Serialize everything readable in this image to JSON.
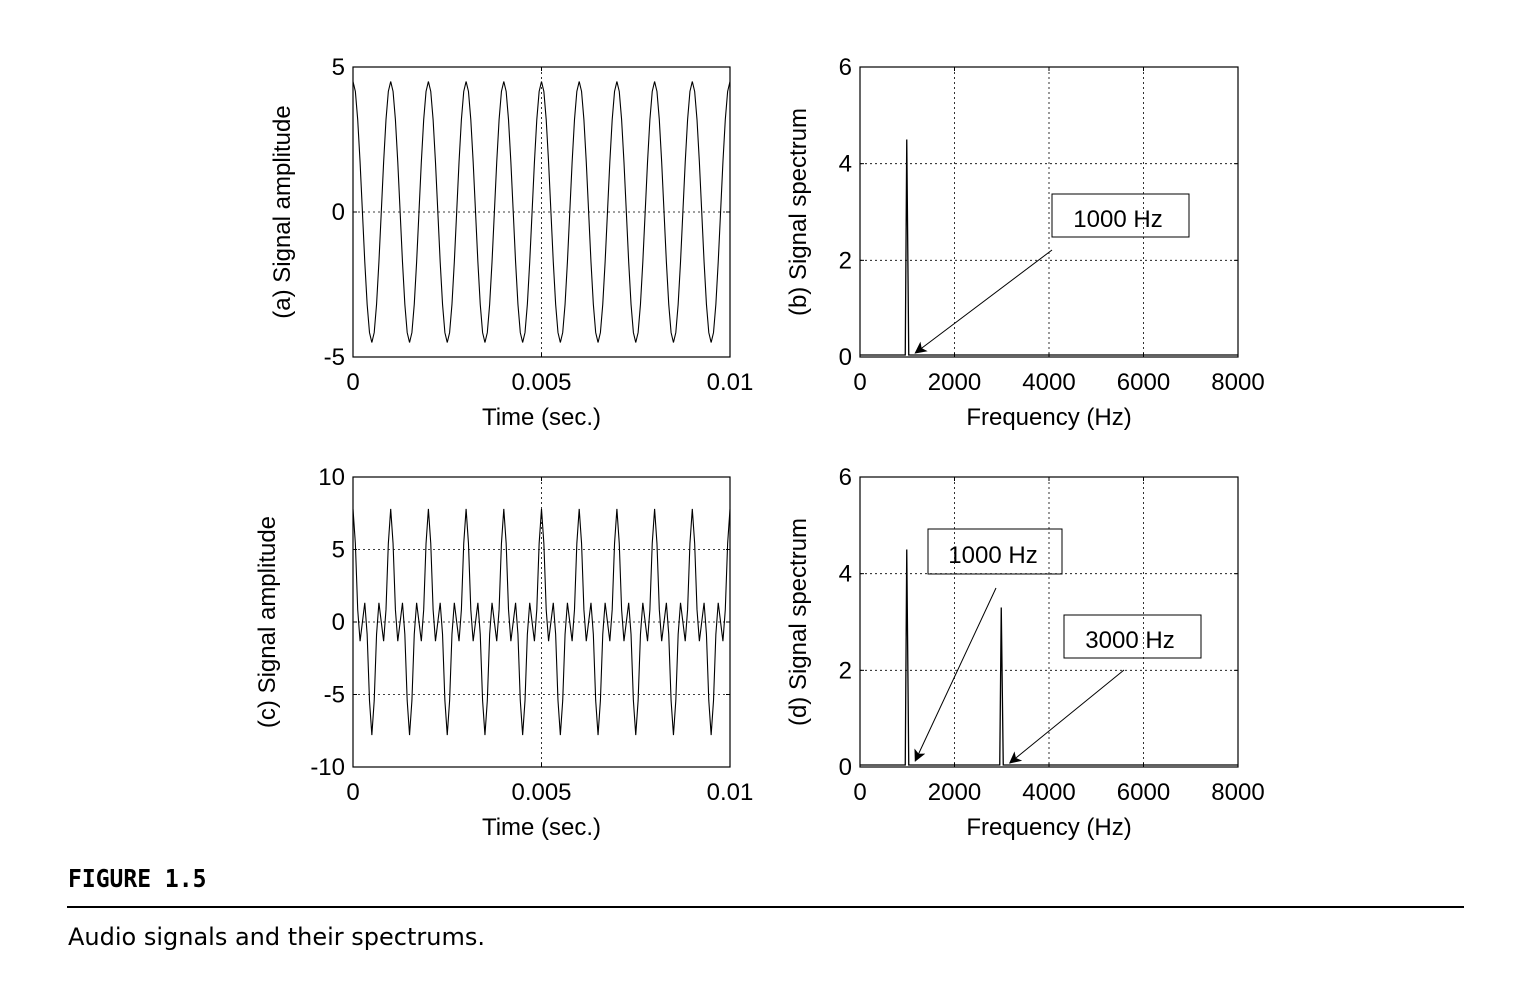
{
  "figure": {
    "label": "FIGURE 1.5",
    "caption": "Audio signals and their spectrums."
  },
  "chart_data": [
    {
      "id": "a",
      "type": "line",
      "xlabel": "Time (sec.)",
      "ylabel": "(a) Signal amplitude",
      "xlim": [
        0,
        0.01
      ],
      "ylim": [
        -5,
        5
      ],
      "xticks": [
        0,
        0.005,
        0.01
      ],
      "xtick_labels": [
        "0",
        "0.005",
        "0.01"
      ],
      "yticks": [
        -5,
        0,
        5
      ],
      "ytick_labels": [
        "-5",
        "0",
        "5"
      ],
      "grid": true,
      "signal": {
        "components": [
          {
            "amplitude": 4.5,
            "frequency_hz": 1000
          }
        ],
        "sample_rate_hz": 8000
      },
      "annotations": []
    },
    {
      "id": "b",
      "type": "line",
      "xlabel": "Frequency (Hz)",
      "ylabel": "(b) Signal spectrum",
      "xlim": [
        0,
        8000
      ],
      "ylim": [
        0,
        6
      ],
      "xticks": [
        0,
        2000,
        4000,
        6000,
        8000
      ],
      "xtick_labels": [
        "0",
        "2000",
        "4000",
        "6000",
        "8000"
      ],
      "yticks": [
        0,
        2,
        4,
        6
      ],
      "ytick_labels": [
        "0",
        "2",
        "4",
        "6"
      ],
      "grid": true,
      "peaks": [
        {
          "x": 1000,
          "y": 4.5
        }
      ],
      "annotations": [
        {
          "text": "1000 Hz",
          "target_x": 1000
        }
      ]
    },
    {
      "id": "c",
      "type": "line",
      "xlabel": "Time (sec.)",
      "ylabel": "(c) Signal amplitude",
      "xlim": [
        0,
        0.01
      ],
      "ylim": [
        -10,
        10
      ],
      "xticks": [
        0,
        0.005,
        0.01
      ],
      "xtick_labels": [
        "0",
        "0.005",
        "0.01"
      ],
      "yticks": [
        -10,
        -5,
        0,
        5,
        10
      ],
      "ytick_labels": [
        "-10",
        "-5",
        "0",
        "5",
        "10"
      ],
      "grid": true,
      "signal": {
        "components": [
          {
            "amplitude": 4.5,
            "frequency_hz": 1000
          },
          {
            "amplitude": 3.3,
            "frequency_hz": 3000
          }
        ],
        "sample_rate_hz": 8000
      },
      "annotations": []
    },
    {
      "id": "d",
      "type": "line",
      "xlabel": "Frequency (Hz)",
      "ylabel": "(d) Signal spectrum",
      "xlim": [
        0,
        8000
      ],
      "ylim": [
        0,
        6
      ],
      "xticks": [
        0,
        2000,
        4000,
        6000,
        8000
      ],
      "xtick_labels": [
        "0",
        "2000",
        "4000",
        "6000",
        "8000"
      ],
      "yticks": [
        0,
        2,
        4,
        6
      ],
      "ytick_labels": [
        "0",
        "2",
        "4",
        "6"
      ],
      "grid": true,
      "peaks": [
        {
          "x": 1000,
          "y": 4.5
        },
        {
          "x": 3000,
          "y": 3.3
        }
      ],
      "annotations": [
        {
          "text": "1000 Hz",
          "target_x": 1000
        },
        {
          "text": "3000 Hz",
          "target_x": 3000
        }
      ]
    }
  ]
}
